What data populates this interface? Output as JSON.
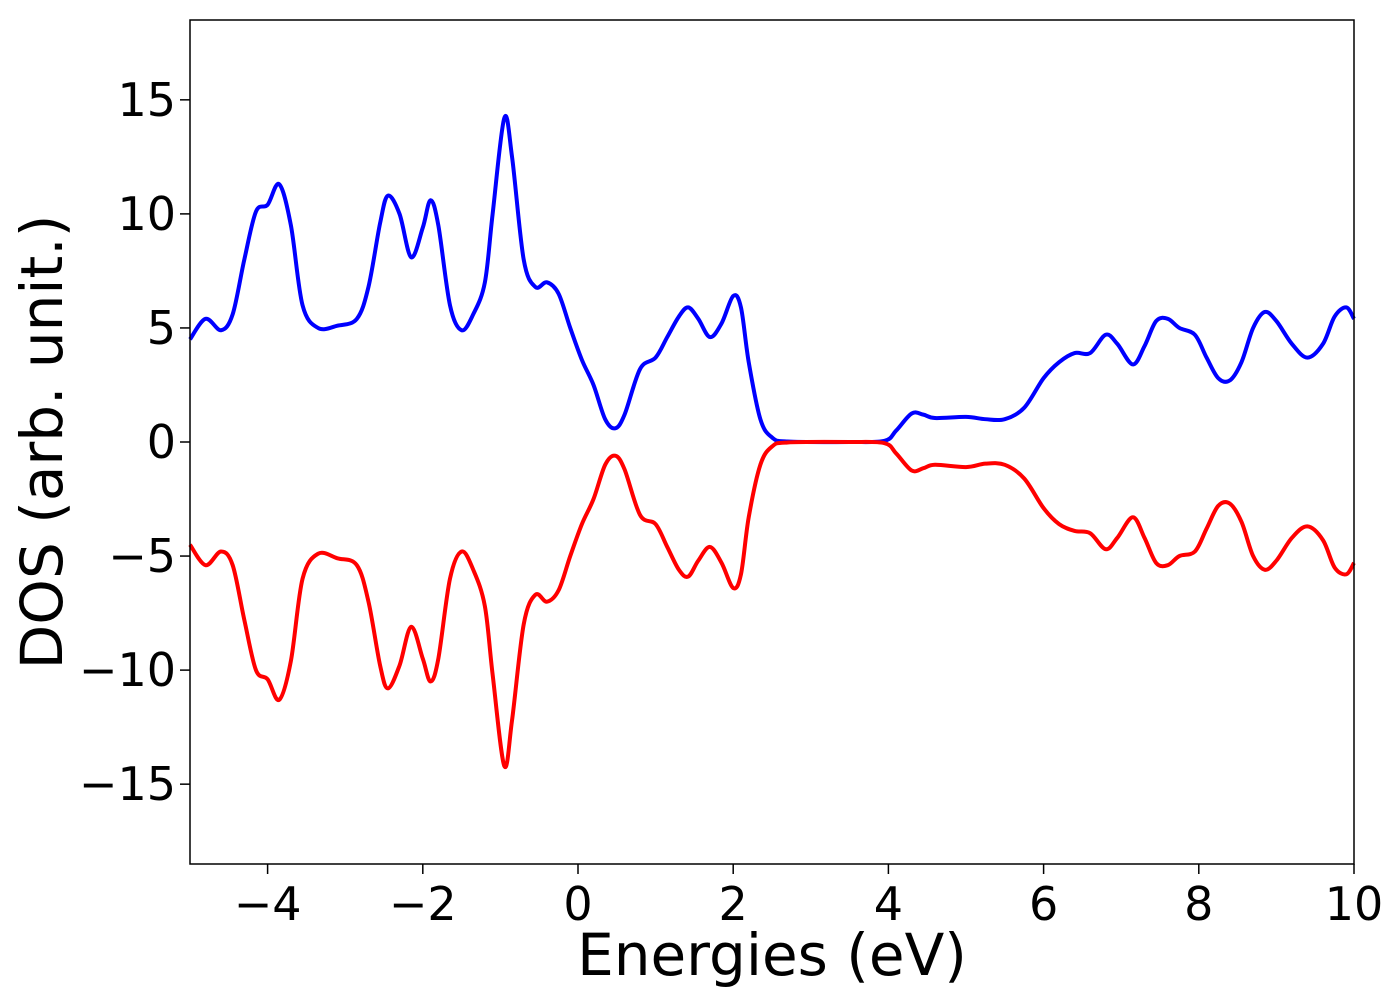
{
  "chart_data": {
    "type": "line",
    "title": "",
    "xlabel": "Energies (eV)",
    "ylabel": "DOS (arb. unit.)",
    "xlim": [
      -5,
      10
    ],
    "ylim": [
      -18.5,
      18.5
    ],
    "xticks": [
      -4,
      -2,
      0,
      2,
      4,
      6,
      8,
      10
    ],
    "xtick_labels": [
      "−4",
      "−2",
      "0",
      "2",
      "4",
      "6",
      "8",
      "10"
    ],
    "yticks": [
      -15,
      -10,
      -5,
      0,
      5,
      10,
      15
    ],
    "ytick_labels": [
      "−15",
      "−10",
      "−5",
      "0",
      "5",
      "10",
      "15"
    ],
    "grid": false,
    "legend": "none",
    "series": [
      {
        "color": "#0000ff",
        "points": [
          [
            -5.0,
            4.5
          ],
          [
            -4.8,
            5.4
          ],
          [
            -4.6,
            4.9
          ],
          [
            -4.45,
            5.6
          ],
          [
            -4.3,
            8.0
          ],
          [
            -4.15,
            10.1
          ],
          [
            -4.0,
            10.4
          ],
          [
            -3.85,
            11.3
          ],
          [
            -3.7,
            9.5
          ],
          [
            -3.55,
            6.0
          ],
          [
            -3.35,
            5.0
          ],
          [
            -3.1,
            5.1
          ],
          [
            -2.85,
            5.4
          ],
          [
            -2.7,
            6.8
          ],
          [
            -2.55,
            9.6
          ],
          [
            -2.45,
            10.8
          ],
          [
            -2.3,
            10.0
          ],
          [
            -2.15,
            8.1
          ],
          [
            -2.0,
            9.4
          ],
          [
            -1.9,
            10.6
          ],
          [
            -1.8,
            9.5
          ],
          [
            -1.65,
            6.0
          ],
          [
            -1.5,
            4.9
          ],
          [
            -1.35,
            5.6
          ],
          [
            -1.2,
            7.0
          ],
          [
            -1.1,
            10.0
          ],
          [
            -0.95,
            14.2
          ],
          [
            -0.85,
            12.5
          ],
          [
            -0.7,
            8.0
          ],
          [
            -0.55,
            6.8
          ],
          [
            -0.4,
            7.0
          ],
          [
            -0.25,
            6.5
          ],
          [
            -0.1,
            5.0
          ],
          [
            0.05,
            3.6
          ],
          [
            0.2,
            2.5
          ],
          [
            0.35,
            1.0
          ],
          [
            0.48,
            0.6
          ],
          [
            0.6,
            1.2
          ],
          [
            0.8,
            3.2
          ],
          [
            1.0,
            3.7
          ],
          [
            1.15,
            4.6
          ],
          [
            1.3,
            5.5
          ],
          [
            1.42,
            5.9
          ],
          [
            1.55,
            5.4
          ],
          [
            1.7,
            4.6
          ],
          [
            1.85,
            5.2
          ],
          [
            2.0,
            6.4
          ],
          [
            2.1,
            5.9
          ],
          [
            2.2,
            3.5
          ],
          [
            2.35,
            1.0
          ],
          [
            2.5,
            0.2
          ],
          [
            2.7,
            0.02
          ],
          [
            3.5,
            0.0
          ],
          [
            3.95,
            0.05
          ],
          [
            4.1,
            0.5
          ],
          [
            4.3,
            1.25
          ],
          [
            4.45,
            1.2
          ],
          [
            4.6,
            1.05
          ],
          [
            5.0,
            1.1
          ],
          [
            5.25,
            1.0
          ],
          [
            5.5,
            1.0
          ],
          [
            5.75,
            1.5
          ],
          [
            6.0,
            2.8
          ],
          [
            6.2,
            3.5
          ],
          [
            6.4,
            3.9
          ],
          [
            6.6,
            3.9
          ],
          [
            6.8,
            4.7
          ],
          [
            6.95,
            4.3
          ],
          [
            7.15,
            3.4
          ],
          [
            7.3,
            4.2
          ],
          [
            7.45,
            5.3
          ],
          [
            7.6,
            5.4
          ],
          [
            7.75,
            5.0
          ],
          [
            7.95,
            4.7
          ],
          [
            8.1,
            3.7
          ],
          [
            8.25,
            2.8
          ],
          [
            8.4,
            2.7
          ],
          [
            8.55,
            3.5
          ],
          [
            8.7,
            5.0
          ],
          [
            8.85,
            5.7
          ],
          [
            9.0,
            5.3
          ],
          [
            9.2,
            4.3
          ],
          [
            9.4,
            3.7
          ],
          [
            9.6,
            4.3
          ],
          [
            9.75,
            5.5
          ],
          [
            9.9,
            5.9
          ],
          [
            10.0,
            5.4
          ]
        ]
      },
      {
        "color": "#ff0000",
        "points": [
          [
            -5.0,
            -4.5
          ],
          [
            -4.8,
            -5.4
          ],
          [
            -4.6,
            -4.8
          ],
          [
            -4.45,
            -5.4
          ],
          [
            -4.3,
            -7.8
          ],
          [
            -4.15,
            -10.0
          ],
          [
            -4.0,
            -10.4
          ],
          [
            -3.85,
            -11.3
          ],
          [
            -3.7,
            -9.6
          ],
          [
            -3.55,
            -6.0
          ],
          [
            -3.35,
            -4.9
          ],
          [
            -3.1,
            -5.1
          ],
          [
            -2.85,
            -5.4
          ],
          [
            -2.7,
            -7.0
          ],
          [
            -2.55,
            -9.8
          ],
          [
            -2.45,
            -10.8
          ],
          [
            -2.3,
            -9.8
          ],
          [
            -2.15,
            -8.1
          ],
          [
            -2.0,
            -9.5
          ],
          [
            -1.9,
            -10.5
          ],
          [
            -1.8,
            -9.5
          ],
          [
            -1.65,
            -6.0
          ],
          [
            -1.5,
            -4.8
          ],
          [
            -1.35,
            -5.6
          ],
          [
            -1.2,
            -7.2
          ],
          [
            -1.1,
            -10.2
          ],
          [
            -0.95,
            -14.2
          ],
          [
            -0.85,
            -12.2
          ],
          [
            -0.7,
            -8.0
          ],
          [
            -0.55,
            -6.7
          ],
          [
            -0.4,
            -7.0
          ],
          [
            -0.25,
            -6.5
          ],
          [
            -0.1,
            -5.0
          ],
          [
            0.05,
            -3.6
          ],
          [
            0.2,
            -2.5
          ],
          [
            0.35,
            -1.0
          ],
          [
            0.48,
            -0.6
          ],
          [
            0.6,
            -1.2
          ],
          [
            0.8,
            -3.2
          ],
          [
            1.0,
            -3.6
          ],
          [
            1.15,
            -4.6
          ],
          [
            1.3,
            -5.6
          ],
          [
            1.42,
            -5.9
          ],
          [
            1.55,
            -5.2
          ],
          [
            1.7,
            -4.6
          ],
          [
            1.85,
            -5.3
          ],
          [
            2.0,
            -6.4
          ],
          [
            2.1,
            -5.8
          ],
          [
            2.2,
            -3.3
          ],
          [
            2.35,
            -1.0
          ],
          [
            2.5,
            -0.2
          ],
          [
            2.7,
            -0.02
          ],
          [
            3.5,
            0.0
          ],
          [
            3.95,
            -0.05
          ],
          [
            4.1,
            -0.5
          ],
          [
            4.3,
            -1.25
          ],
          [
            4.45,
            -1.15
          ],
          [
            4.6,
            -1.0
          ],
          [
            5.0,
            -1.1
          ],
          [
            5.25,
            -0.95
          ],
          [
            5.5,
            -1.0
          ],
          [
            5.75,
            -1.6
          ],
          [
            6.0,
            -2.9
          ],
          [
            6.2,
            -3.6
          ],
          [
            6.4,
            -3.9
          ],
          [
            6.6,
            -4.0
          ],
          [
            6.8,
            -4.7
          ],
          [
            6.95,
            -4.2
          ],
          [
            7.15,
            -3.3
          ],
          [
            7.3,
            -4.2
          ],
          [
            7.45,
            -5.3
          ],
          [
            7.6,
            -5.4
          ],
          [
            7.75,
            -5.0
          ],
          [
            7.95,
            -4.8
          ],
          [
            8.1,
            -3.8
          ],
          [
            8.25,
            -2.8
          ],
          [
            8.4,
            -2.7
          ],
          [
            8.55,
            -3.5
          ],
          [
            8.7,
            -5.0
          ],
          [
            8.85,
            -5.6
          ],
          [
            9.0,
            -5.2
          ],
          [
            9.2,
            -4.2
          ],
          [
            9.4,
            -3.7
          ],
          [
            9.6,
            -4.3
          ],
          [
            9.75,
            -5.5
          ],
          [
            9.9,
            -5.8
          ],
          [
            10.0,
            -5.3
          ]
        ]
      }
    ]
  }
}
